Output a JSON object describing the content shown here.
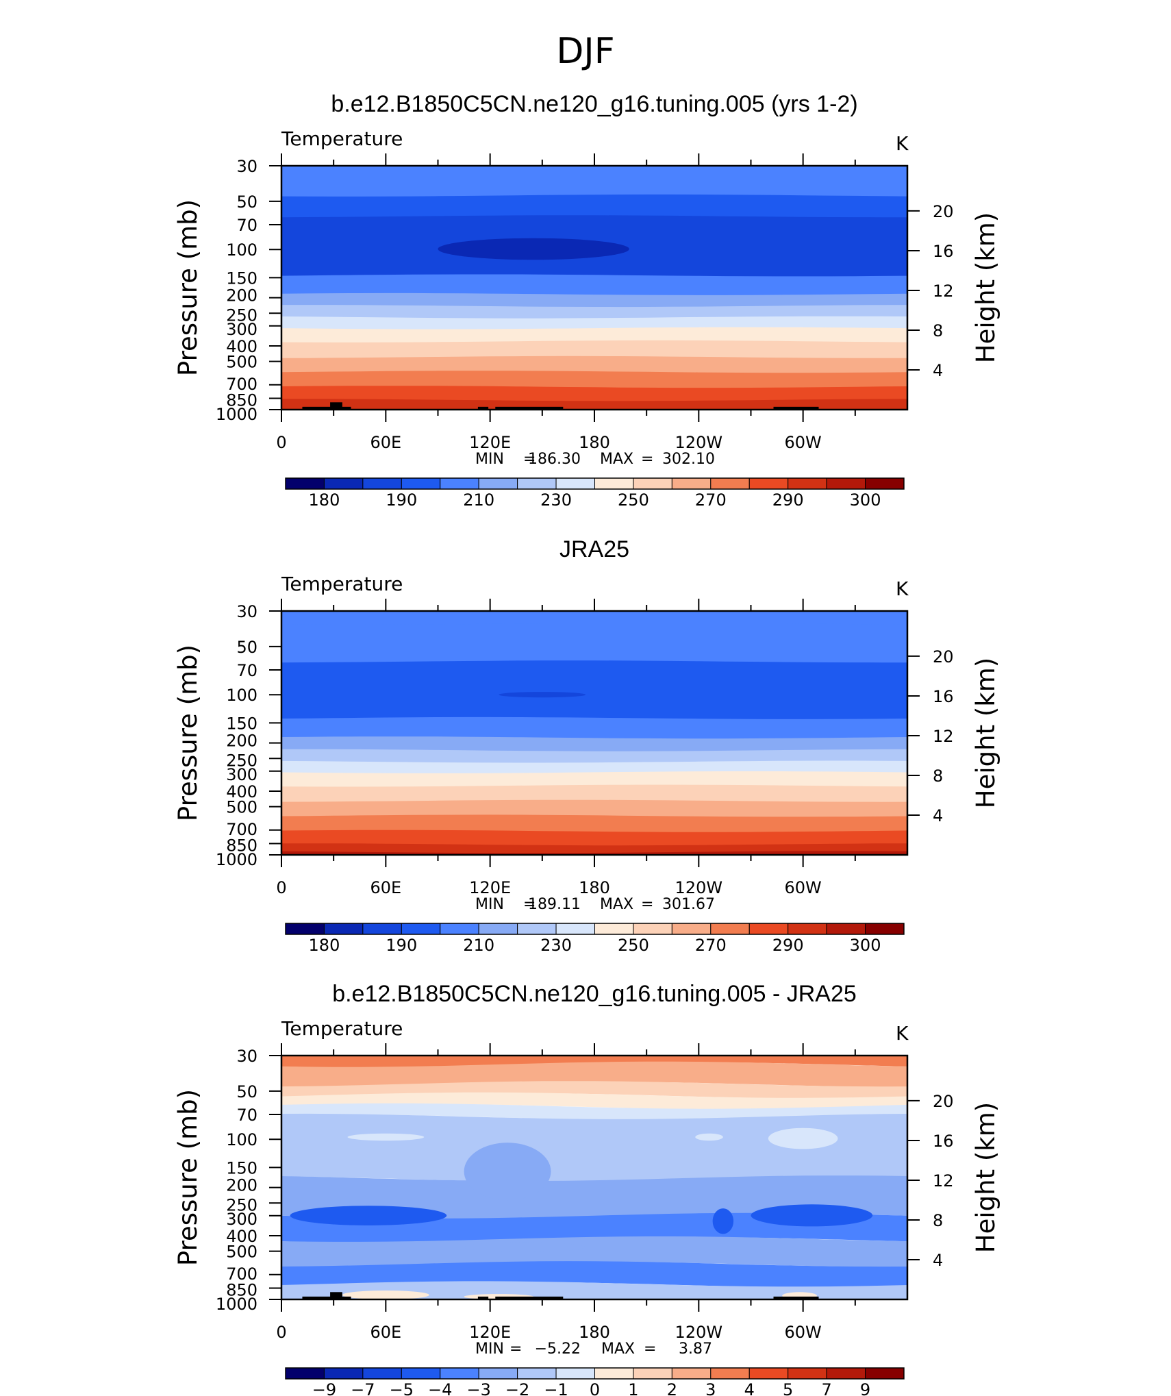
{
  "figure": {
    "title": "DJF"
  },
  "colorbar_colors": [
    "#03006c",
    "#0a28b4",
    "#1446dc",
    "#1e5af0",
    "#4b82ff",
    "#87aaf5",
    "#b0c8f8",
    "#d8e6fb",
    "#fdebd9",
    "#fcd2b8",
    "#f8ad89",
    "#f27d50",
    "#ea4a23",
    "#d23214",
    "#b3190a",
    "#870000"
  ],
  "chart_data": [
    {
      "type": "contour",
      "title": "b.e12.B1850C5CN.ne120_g16.tuning.005 (yrs 1-2)",
      "variable": "Temperature",
      "units": "K",
      "ylabel": "Pressure (mb)",
      "y2label": "Height (km)",
      "xticks": [
        "0",
        "60E",
        "120E",
        "180",
        "120W",
        "60W"
      ],
      "yticks": [
        "30",
        "50",
        "70",
        "100",
        "150",
        "200",
        "250",
        "300",
        "400",
        "500",
        "700",
        "850",
        "1000"
      ],
      "y2ticks": [
        "20",
        "16",
        "12",
        "8",
        "4"
      ],
      "stats": {
        "min_label": "MIN",
        "min": "186.30",
        "max_label": "MAX",
        "max": "302.10"
      },
      "levels": [
        "180",
        "190",
        "210",
        "230",
        "250",
        "270",
        "290",
        "300"
      ],
      "bands": [
        {
          "p_top": 30,
          "p_bot": 46,
          "c": 4
        },
        {
          "p_top": 46,
          "p_bot": 62,
          "c": 3
        },
        {
          "p_top": 62,
          "p_bot": 145,
          "c": 2
        },
        {
          "p_top": 145,
          "p_bot": 190,
          "c": 4
        },
        {
          "p_top": 190,
          "p_bot": 225,
          "c": 5
        },
        {
          "p_top": 225,
          "p_bot": 265,
          "c": 6
        },
        {
          "p_top": 265,
          "p_bot": 310,
          "c": 7
        },
        {
          "p_top": 310,
          "p_bot": 375,
          "c": 8
        },
        {
          "p_top": 375,
          "p_bot": 470,
          "c": 9
        },
        {
          "p_top": 470,
          "p_bot": 580,
          "c": 10
        },
        {
          "p_top": 580,
          "p_bot": 720,
          "c": 11
        },
        {
          "p_top": 720,
          "p_bot": 870,
          "c": 12
        },
        {
          "p_top": 870,
          "p_bot": 1000,
          "c": 13
        }
      ],
      "blobs": [
        {
          "lon": 145,
          "p": 100,
          "lon_w": 55,
          "p_top": 85,
          "p_bot": 116,
          "c": 1
        }
      ],
      "terrain": [
        {
          "lon0": 12,
          "lon1": 40,
          "p": 960
        },
        {
          "lon0": 28,
          "lon1": 35,
          "p": 900
        },
        {
          "lon0": 113,
          "lon1": 119,
          "p": 960
        },
        {
          "lon0": 123,
          "lon1": 162,
          "p": 960
        },
        {
          "lon0": 283,
          "lon1": 309,
          "p": 960
        }
      ]
    },
    {
      "type": "contour",
      "title": "JRA25",
      "variable": "Temperature",
      "units": "K",
      "ylabel": "Pressure (mb)",
      "y2label": "Height (km)",
      "xticks": [
        "0",
        "60E",
        "120E",
        "180",
        "120W",
        "60W"
      ],
      "yticks": [
        "30",
        "50",
        "70",
        "100",
        "150",
        "200",
        "250",
        "300",
        "400",
        "500",
        "700",
        "850",
        "1000"
      ],
      "y2ticks": [
        "20",
        "16",
        "12",
        "8",
        "4"
      ],
      "stats": {
        "min_label": "MIN",
        "min": "189.11",
        "max_label": "MAX",
        "max": "301.67"
      },
      "levels": [
        "180",
        "190",
        "210",
        "230",
        "250",
        "270",
        "290",
        "300"
      ],
      "bands": [
        {
          "p_top": 30,
          "p_bot": 36,
          "c": 4
        },
        {
          "p_top": 36,
          "p_bot": 62,
          "c": 4
        },
        {
          "p_top": 62,
          "p_bot": 140,
          "c": 3
        },
        {
          "p_top": 140,
          "p_bot": 185,
          "c": 4
        },
        {
          "p_top": 185,
          "p_bot": 222,
          "c": 5
        },
        {
          "p_top": 222,
          "p_bot": 262,
          "c": 6
        },
        {
          "p_top": 262,
          "p_bot": 305,
          "c": 7
        },
        {
          "p_top": 305,
          "p_bot": 370,
          "c": 8
        },
        {
          "p_top": 370,
          "p_bot": 460,
          "c": 9
        },
        {
          "p_top": 460,
          "p_bot": 570,
          "c": 10
        },
        {
          "p_top": 570,
          "p_bot": 710,
          "c": 11
        },
        {
          "p_top": 710,
          "p_bot": 860,
          "c": 12
        },
        {
          "p_top": 860,
          "p_bot": 960,
          "c": 13
        },
        {
          "p_top": 960,
          "p_bot": 1000,
          "c": 14
        }
      ],
      "blobs": [
        {
          "lon": 150,
          "p": 100,
          "lon_w": 25,
          "p_top": 96,
          "p_bot": 104,
          "c": 2
        }
      ],
      "terrain": []
    },
    {
      "type": "contour",
      "title": "b.e12.B1850C5CN.ne120_g16.tuning.005 - JRA25",
      "variable": "Temperature",
      "units": "K",
      "ylabel": "Pressure (mb)",
      "y2label": "Height (km)",
      "xticks": [
        "0",
        "60E",
        "120E",
        "180",
        "120W",
        "60W"
      ],
      "yticks": [
        "30",
        "50",
        "70",
        "100",
        "150",
        "200",
        "250",
        "300",
        "400",
        "500",
        "700",
        "850",
        "1000"
      ],
      "y2ticks": [
        "20",
        "16",
        "12",
        "8",
        "4"
      ],
      "stats": {
        "min_label": "MIN",
        "min": "−5.22",
        "max_label": "MAX",
        "max": "3.87"
      },
      "levels": [
        "−9",
        "−7",
        "−5",
        "−4",
        "−3",
        "−2",
        "−1",
        "0",
        "1",
        "2",
        "3",
        "4",
        "5",
        "7",
        "9"
      ],
      "bands": [
        {
          "p_top": 30,
          "p_bot": 34,
          "c": 11
        },
        {
          "p_top": 34,
          "p_bot": 45,
          "c": 10
        },
        {
          "p_top": 45,
          "p_bot": 53,
          "c": 9
        },
        {
          "p_top": 53,
          "p_bot": 62,
          "c": 8
        },
        {
          "p_top": 62,
          "p_bot": 72,
          "c": 7
        },
        {
          "p_top": 72,
          "p_bot": 175,
          "c": 6
        },
        {
          "p_top": 175,
          "p_bot": 300,
          "c": 5
        },
        {
          "p_top": 300,
          "p_bot": 420,
          "c": 4
        },
        {
          "p_top": 420,
          "p_bot": 600,
          "c": 5
        },
        {
          "p_top": 600,
          "p_bot": 800,
          "c": 4
        },
        {
          "p_top": 800,
          "p_bot": 1000,
          "c": 6
        }
      ],
      "blobs": [
        {
          "lon": 60,
          "p": 97,
          "lon_w": 22,
          "p_top": 92,
          "p_bot": 102,
          "c": 7
        },
        {
          "lon": 246,
          "p": 97,
          "lon_w": 8,
          "p_top": 92,
          "p_bot": 102,
          "c": 7
        },
        {
          "lon": 300,
          "p": 100,
          "lon_w": 20,
          "p_top": 85,
          "p_bot": 115,
          "c": 7
        },
        {
          "lon": 130,
          "p": 160,
          "lon_w": 25,
          "p_top": 105,
          "p_bot": 240,
          "c": 5
        },
        {
          "lon": 50,
          "p": 300,
          "lon_w": 45,
          "p_top": 260,
          "p_bot": 345,
          "c": 3
        },
        {
          "lon": 305,
          "p": 300,
          "lon_w": 35,
          "p_top": 255,
          "p_bot": 350,
          "c": 3
        },
        {
          "lon": 254,
          "p": 320,
          "lon_w": 6,
          "p_top": 270,
          "p_bot": 390,
          "c": 3
        },
        {
          "lon": 140,
          "p": 470,
          "lon_w": 35,
          "p_top": 440,
          "p_bot": 505,
          "c": 5
        },
        {
          "lon": 60,
          "p": 940,
          "lon_w": 25,
          "p_top": 880,
          "p_bot": 1000,
          "c": 8
        },
        {
          "lon": 125,
          "p": 960,
          "lon_w": 20,
          "p_top": 925,
          "p_bot": 1000,
          "c": 8
        },
        {
          "lon": 298,
          "p": 950,
          "lon_w": 10,
          "p_top": 900,
          "p_bot": 1000,
          "c": 8
        }
      ],
      "terrain": [
        {
          "lon0": 12,
          "lon1": 40,
          "p": 960
        },
        {
          "lon0": 28,
          "lon1": 35,
          "p": 900
        },
        {
          "lon0": 113,
          "lon1": 119,
          "p": 960
        },
        {
          "lon0": 123,
          "lon1": 162,
          "p": 960
        },
        {
          "lon0": 283,
          "lon1": 309,
          "p": 960
        }
      ]
    }
  ]
}
